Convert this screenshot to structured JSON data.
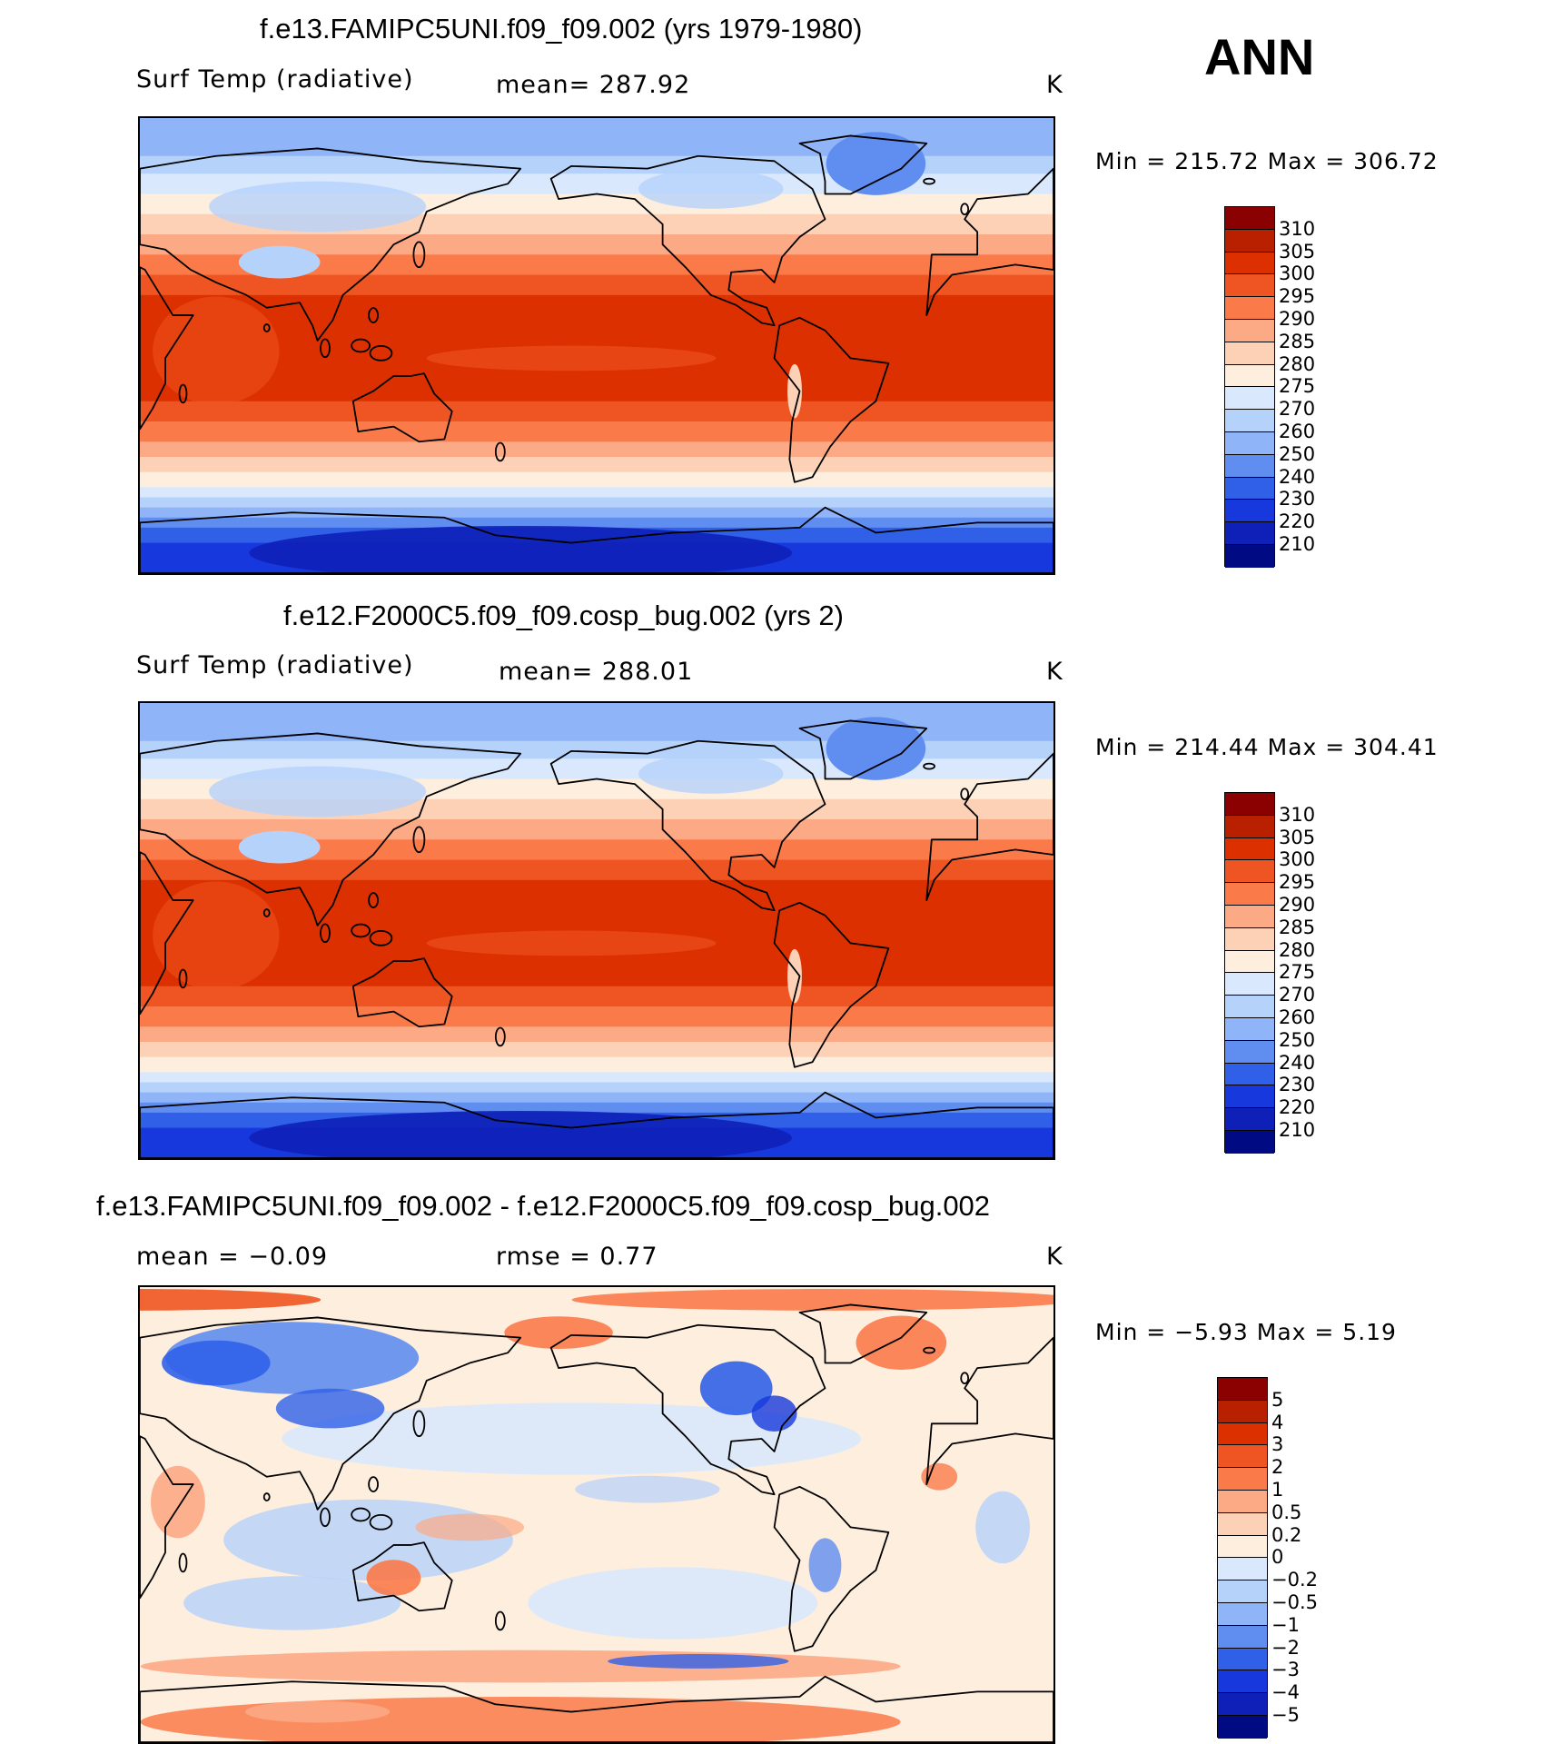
{
  "season": "ANN",
  "panels": [
    {
      "title": "f.e13.FAMIPC5UNI.f09_f09.002 (yrs 1979-1980)",
      "left_label": "Surf Temp (radiative)",
      "mid_label": "mean= 287.92",
      "units": "K",
      "minmax": "Min = 215.72 Max = 306.72",
      "type": "absolute",
      "colorbar": {
        "colors": [
          "#8b0000",
          "#b82000",
          "#dc3000",
          "#ef5522",
          "#fa7a4a",
          "#fca985",
          "#fcd1b6",
          "#fdeede",
          "#d9e8fc",
          "#b5d2fb",
          "#8fb4f7",
          "#5f8df0",
          "#3060e8",
          "#1638dc",
          "#0e20b8",
          "#000a82"
        ],
        "labels": [
          "310",
          "305",
          "300",
          "295",
          "290",
          "285",
          "280",
          "275",
          "270",
          "260",
          "250",
          "240",
          "230",
          "220",
          "210"
        ]
      }
    },
    {
      "title": "f.e12.F2000C5.f09_f09.cosp_bug.002 (yrs 2)",
      "left_label": "Surf Temp (radiative)",
      "mid_label": "mean= 288.01",
      "units": "K",
      "minmax": "Min = 214.44 Max = 304.41",
      "type": "absolute",
      "colorbar": {
        "colors": [
          "#8b0000",
          "#b82000",
          "#dc3000",
          "#ef5522",
          "#fa7a4a",
          "#fca985",
          "#fcd1b6",
          "#fdeede",
          "#d9e8fc",
          "#b5d2fb",
          "#8fb4f7",
          "#5f8df0",
          "#3060e8",
          "#1638dc",
          "#0e20b8",
          "#000a82"
        ],
        "labels": [
          "310",
          "305",
          "300",
          "295",
          "290",
          "285",
          "280",
          "275",
          "270",
          "260",
          "250",
          "240",
          "230",
          "220",
          "210"
        ]
      }
    },
    {
      "title": "f.e13.FAMIPC5UNI.f09_f09.002 - f.e12.F2000C5.f09_f09.cosp_bug.002",
      "left_label": "mean =  −0.09",
      "mid_label": "rmse =    0.77",
      "units": "K",
      "minmax": "Min =  −5.93 Max =    5.19",
      "type": "difference",
      "colorbar": {
        "colors": [
          "#8b0000",
          "#b82000",
          "#dc3000",
          "#ef5522",
          "#fa7a4a",
          "#fca985",
          "#fcd1b6",
          "#fdeede",
          "#d9e8fc",
          "#b5d2fb",
          "#8fb4f7",
          "#5f8df0",
          "#3060e8",
          "#1638dc",
          "#0e20b8",
          "#000a82"
        ],
        "labels": [
          "5",
          "4",
          "3",
          "2",
          "1",
          "0.5",
          "0.2",
          "0",
          "−0.2",
          "−0.5",
          "−1",
          "−2",
          "−3",
          "−4",
          "−5"
        ]
      }
    }
  ]
}
